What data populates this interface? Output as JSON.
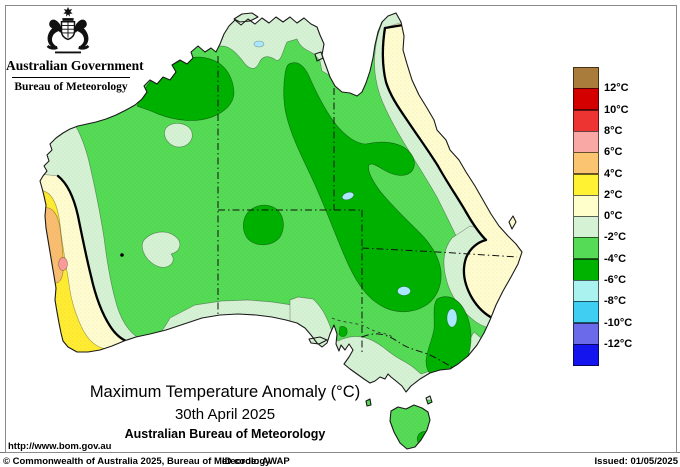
{
  "header": {
    "government": "Australian Government",
    "bureau": "Bureau of Meteorology"
  },
  "legend": {
    "unit": "°C",
    "boxes": [
      "#A97C3C",
      "#D40000",
      "#EE3333",
      "#F9A8A5",
      "#FAC471",
      "#FFF233",
      "#FFFFCC",
      "#D6F2D4",
      "#55DB55",
      "#00B200",
      "#AAF2F0",
      "#40CFF2",
      "#6A6AEB",
      "#1414EE"
    ],
    "ticks": [
      "12°C",
      "10°C",
      "8°C",
      "6°C",
      "4°C",
      "2°C",
      "0°C",
      "-2°C",
      "-4°C",
      "-6°C",
      "-8°C",
      "-10°C",
      "-12°C"
    ]
  },
  "titles": {
    "main": "Maximum Temperature Anomaly (°C)",
    "date": "30th April 2025",
    "org": "Australian Bureau of Meteorology"
  },
  "footer": {
    "url": "http://www.bom.gov.au",
    "copyright": "© Commonwealth of Australia 2025, Bureau of Meteorology",
    "id_code": "ID code: AWAP",
    "issued": "Issued: 01/05/2025"
  },
  "map": {
    "colors": {
      "sea": "#FFFFFF",
      "base": "#55DB55",
      "mint": "#D6F2D4",
      "cream": "#FFFDCF",
      "yellow": "#FFEC33",
      "orange": "#F9BE6F",
      "pink": "#FB9B9B",
      "dark_green": "#00B200",
      "lake": "#ABE9FF",
      "speck": "#B03030",
      "coast": "#1A1A1A"
    }
  }
}
